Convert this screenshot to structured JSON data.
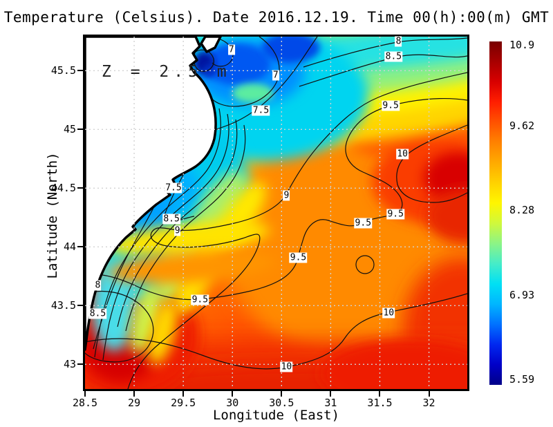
{
  "title": "Temperature (Celsius). Date 2016.12.19. Time 00(h):00(m) GMT",
  "annotation": "Z = 2.5 m",
  "axes": {
    "x_label": "Longitude (East)",
    "y_label": "Latitude (North)"
  },
  "chart_data": {
    "type": "heatmap",
    "title": "Temperature (Celsius). Date 2016.12.19. Time 00(h):00(m) GMT",
    "variable": "Temperature (Celsius)",
    "date": "2016.12.19",
    "time": "00(h):00(m) GMT",
    "depth_annotation": "Z = 2.5 m",
    "xlabel": "Longitude (East)",
    "ylabel": "Latitude (North)",
    "xlim": [
      28.5,
      32.39
    ],
    "ylim": [
      42.79,
      45.79
    ],
    "x_ticks": [
      28.5,
      29,
      29.5,
      30,
      30.5,
      31,
      31.5,
      32
    ],
    "y_ticks": [
      45.5,
      45,
      44.5,
      44,
      43.5,
      43
    ],
    "grid": true,
    "colorbar": {
      "min": 5.59,
      "max": 10.9,
      "ticks": [
        10.9,
        9.62,
        8.28,
        6.93,
        5.59
      ],
      "gradient": [
        "#780000",
        "#a80000",
        "#d80000",
        "#ff1e00",
        "#ff5200",
        "#ff8200",
        "#ffaa00",
        "#ffd200",
        "#fff600",
        "#d0f83c",
        "#8cf486",
        "#46ecc8",
        "#00e0f4",
        "#00b6ff",
        "#0072ff",
        "#0028f0",
        "#0000c8",
        "#000088"
      ]
    },
    "contour_levels": [
      6.5,
      7,
      7.5,
      8,
      8.5,
      9,
      9.5,
      10
    ],
    "contour_labels": [
      {
        "t": "7",
        "lon": 29.99,
        "lat": 45.68
      },
      {
        "t": "7",
        "lon": 30.44,
        "lat": 45.46
      },
      {
        "t": "8",
        "lon": 31.69,
        "lat": 45.75
      },
      {
        "t": "8.5",
        "lon": 31.64,
        "lat": 45.62
      },
      {
        "t": "7.5",
        "lon": 30.29,
        "lat": 45.16
      },
      {
        "t": "9.5",
        "lon": 31.61,
        "lat": 45.2
      },
      {
        "t": "10",
        "lon": 31.73,
        "lat": 44.79
      },
      {
        "t": "7.5",
        "lon": 29.4,
        "lat": 44.5
      },
      {
        "t": "9",
        "lon": 30.55,
        "lat": 44.44
      },
      {
        "t": "8.5",
        "lon": 29.38,
        "lat": 44.24
      },
      {
        "t": "9",
        "lon": 29.44,
        "lat": 44.14
      },
      {
        "t": "9.5",
        "lon": 31.66,
        "lat": 44.28
      },
      {
        "t": "9.5",
        "lon": 31.33,
        "lat": 44.2
      },
      {
        "t": "9.5",
        "lon": 30.67,
        "lat": 43.91
      },
      {
        "t": "8",
        "lon": 28.63,
        "lat": 43.67
      },
      {
        "t": "8.5",
        "lon": 28.63,
        "lat": 43.43
      },
      {
        "t": "9.5",
        "lon": 29.67,
        "lat": 43.55
      },
      {
        "t": "10",
        "lon": 31.59,
        "lat": 43.44
      },
      {
        "t": "10",
        "lon": 30.55,
        "lat": 42.98
      }
    ]
  }
}
